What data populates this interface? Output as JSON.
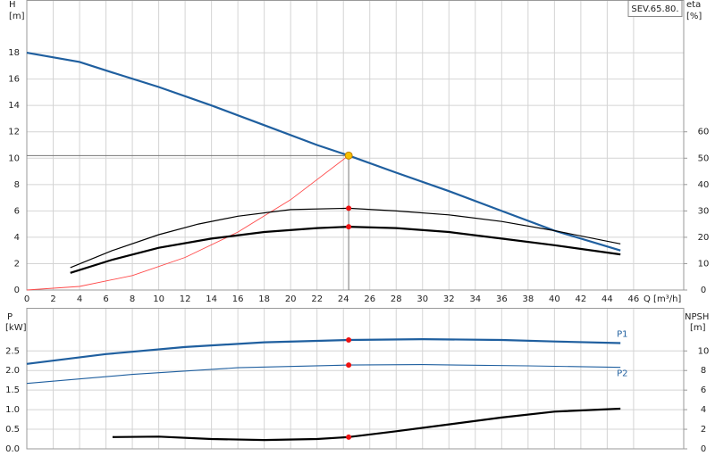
{
  "chart_data": [
    {
      "type": "line",
      "title": "SEV.65.80.",
      "ylabel": "H",
      "yunit": "[m]",
      "y2label": "eta",
      "y2unit": "[%]",
      "xlabel": "Q [m³/h]",
      "xlim": [
        0,
        49.8
      ],
      "xticks": [
        0,
        2,
        4,
        6,
        8,
        10,
        12,
        14,
        16,
        18,
        20,
        22,
        24,
        26,
        28,
        30,
        32,
        34,
        36,
        38,
        40,
        42,
        44,
        46
      ],
      "ylim": [
        0,
        22
      ],
      "yticks": [
        0,
        2,
        4,
        6,
        8,
        10,
        12,
        14,
        16,
        18
      ],
      "y2lim": [
        0,
        110
      ],
      "y2ticks": [
        0,
        10,
        20,
        30,
        40,
        50,
        60
      ],
      "grid": true,
      "operating_point": {
        "x": 24.4,
        "y": 10.2
      },
      "series": [
        {
          "color": "#1f5f9f",
          "width": 2.2,
          "x": [
            0,
            4,
            6.5,
            10,
            14,
            18,
            22,
            24.4,
            28,
            32,
            36,
            40,
            45
          ],
          "values": [
            18,
            17.3,
            16.5,
            15.4,
            14,
            12.5,
            11,
            10.2,
            8.9,
            7.5,
            6,
            4.5,
            3
          ]
        },
        {
          "color": "#ff4a4a",
          "width": 0.9,
          "x": [
            0,
            4,
            8,
            12,
            16,
            20,
            24.4
          ],
          "values": [
            0,
            0.27,
            1.1,
            2.47,
            4.39,
            6.85,
            10.2
          ]
        },
        {
          "color": "#000000",
          "width": 1.2,
          "axis": "y2",
          "x": [
            3.3,
            6.5,
            10,
            13,
            16,
            20,
            24.4,
            28,
            32,
            36,
            40,
            45
          ],
          "values": [
            8.5,
            15,
            21,
            25,
            28,
            30.5,
            31,
            30,
            28.5,
            26,
            22.5,
            17.5
          ]
        },
        {
          "color": "#000000",
          "width": 2.2,
          "axis": "y2",
          "x": [
            3.3,
            6.5,
            10,
            14,
            18,
            22,
            24.4,
            28,
            32,
            36,
            40,
            45
          ],
          "values": [
            6.5,
            11.5,
            16,
            19.5,
            22,
            23.5,
            24,
            23.5,
            22,
            19.5,
            17,
            13.5
          ]
        }
      ]
    },
    {
      "type": "line",
      "ylabel": "P",
      "yunit": "[kW]",
      "y2label": "NPSH",
      "y2unit": "[m]",
      "xlim": [
        0,
        49.8
      ],
      "xticks": [
        0,
        2,
        4,
        6,
        8,
        10,
        12,
        14,
        16,
        18,
        20,
        22,
        24,
        26,
        28,
        30,
        32,
        34,
        36,
        38,
        40,
        42,
        44,
        46
      ],
      "ylim": [
        0,
        3.6
      ],
      "yticks": [
        {
          "value": 0,
          "label": "0.0"
        },
        0.5,
        {
          "value": 1,
          "label": "1.0"
        },
        1.5,
        {
          "value": 2,
          "label": "2.0"
        },
        2.5
      ],
      "y2lim": [
        0,
        14.4
      ],
      "y2ticks": [
        0,
        2,
        4,
        6,
        8,
        10
      ],
      "grid": true,
      "series": [
        {
          "name": "P1",
          "color": "#1f5f9f",
          "width": 2.2,
          "x": [
            0,
            6,
            12,
            18,
            24.4,
            30,
            36,
            40,
            45
          ],
          "values": [
            2.17,
            2.42,
            2.6,
            2.72,
            2.78,
            2.8,
            2.78,
            2.74,
            2.7
          ]
        },
        {
          "name": "P2",
          "color": "#1f5f9f",
          "width": 1.1,
          "x": [
            0,
            8,
            16,
            24.4,
            30,
            38,
            45
          ],
          "values": [
            1.67,
            1.9,
            2.07,
            2.14,
            2.15,
            2.12,
            2.08
          ]
        },
        {
          "color": "#000000",
          "width": 2.2,
          "axis": "y2",
          "x": [
            6.5,
            10,
            14,
            18,
            22,
            24.4,
            28,
            32,
            36,
            40,
            45
          ],
          "values": [
            1.2,
            1.25,
            1.0,
            0.9,
            1.0,
            1.2,
            1.8,
            2.5,
            3.2,
            3.8,
            4.1
          ]
        }
      ]
    }
  ]
}
